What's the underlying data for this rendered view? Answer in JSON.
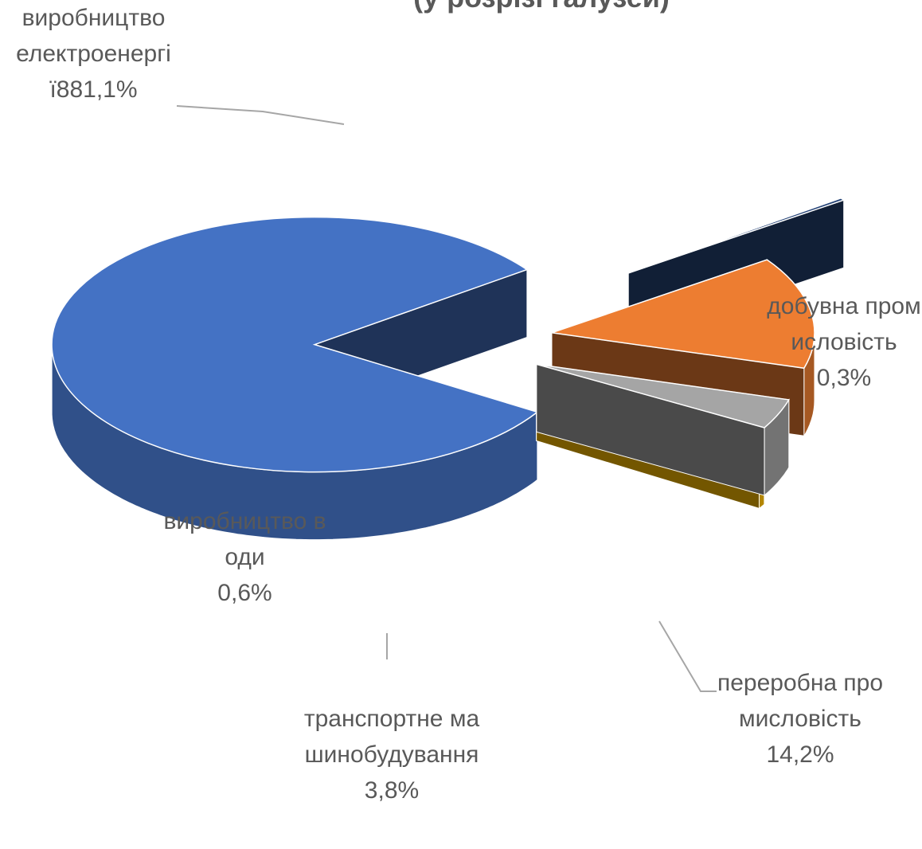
{
  "chart_data": {
    "type": "pie3d",
    "title": "(у розрізі галузей)",
    "categories": [
      "виробництво електроенергії8",
      "добувна промисловість",
      "переробна промисловість",
      "транспортне машинобудування",
      "виробництво води"
    ],
    "values": [
      81.1,
      0.3,
      14.2,
      3.8,
      0.6
    ],
    "value_labels": [
      "81,1%",
      "0,3%",
      "14,2%",
      "3,8%",
      "0,6%"
    ],
    "colors": [
      "#4472c4",
      "#264478",
      "#ed7d31",
      "#a5a5a5",
      "#ffc000"
    ]
  }
}
